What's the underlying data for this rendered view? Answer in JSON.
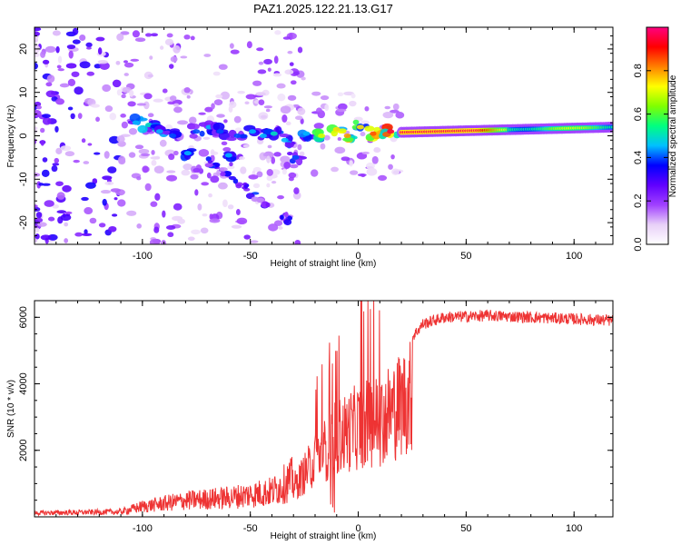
{
  "title": "PAZ1.2025.122.21.13.G17",
  "chart_data": [
    {
      "type": "heatmap",
      "xlabel": "Height of straight line (km)",
      "ylabel": "Frequency (Hz)",
      "xlim": [
        -150,
        118
      ],
      "ylim": [
        -25,
        25
      ],
      "xticks": [
        -100,
        -50,
        0,
        50,
        100
      ],
      "yticks": [
        -20,
        -10,
        0,
        10,
        20
      ],
      "colorbar": {
        "label": "Normalized spectral amplitude",
        "ticks": [
          0.0,
          0.2,
          0.4,
          0.6,
          0.8
        ],
        "range": [
          0,
          1
        ],
        "colors": [
          "#ffffff",
          "#e8d0f8",
          "#a040ff",
          "#6000ff",
          "#0000ff",
          "#00c0ff",
          "#00ff80",
          "#80ff00",
          "#ffff00",
          "#ff8000",
          "#ff0000",
          "#ff0080"
        ]
      },
      "line_energy": [
        {
          "x": -103,
          "y": 3,
          "a": 0.45
        },
        {
          "x": -97,
          "y": 2.5,
          "a": 0.5
        },
        {
          "x": -92,
          "y": 1,
          "a": 0.45
        },
        {
          "x": -86,
          "y": 0,
          "a": 0.4
        },
        {
          "x": -79,
          "y": -4,
          "a": 0.45
        },
        {
          "x": -75,
          "y": 1,
          "a": 0.4
        },
        {
          "x": -69,
          "y": 2,
          "a": 0.45
        },
        {
          "x": -64,
          "y": 1,
          "a": 0.4
        },
        {
          "x": -60,
          "y": -4.5,
          "a": 0.45
        },
        {
          "x": -56,
          "y": 0,
          "a": 0.4
        },
        {
          "x": -49,
          "y": 1,
          "a": 0.45
        },
        {
          "x": -44,
          "y": 0,
          "a": 0.45
        },
        {
          "x": -39,
          "y": 0.5,
          "a": 0.5
        },
        {
          "x": -34,
          "y": -1,
          "a": 0.45
        },
        {
          "x": -29,
          "y": -5,
          "a": 0.4
        },
        {
          "x": -24,
          "y": 0.5,
          "a": 0.45
        },
        {
          "x": -17,
          "y": 0,
          "a": 0.7
        },
        {
          "x": -10,
          "y": 1.5,
          "a": 0.75
        },
        {
          "x": -5,
          "y": 0,
          "a": 0.8
        },
        {
          "x": 1,
          "y": 2,
          "a": 0.75
        },
        {
          "x": 7,
          "y": 0.5,
          "a": 0.85
        },
        {
          "x": 12,
          "y": 1,
          "a": 0.9
        },
        {
          "x": 15,
          "y": 1,
          "a": 0.95
        }
      ],
      "tone": {
        "x_start": 20,
        "x_end": 118,
        "y_start": 0.8,
        "y_end": 2.0,
        "peak_x_start": 20,
        "peak_x_end": 55
      }
    },
    {
      "type": "line",
      "xlabel": "Height of straight line (km)",
      "ylabel": "SNR (10 * v/v)",
      "xlim": [
        -150,
        118
      ],
      "ylim": [
        0,
        6500
      ],
      "xticks": [
        -100,
        -50,
        0,
        50,
        100
      ],
      "yticks": [
        2000,
        4000,
        6000
      ],
      "color": "#ee3333",
      "envelope": [
        {
          "x": -150,
          "y": 130
        },
        {
          "x": -110,
          "y": 170
        },
        {
          "x": -100,
          "y": 350
        },
        {
          "x": -80,
          "y": 550
        },
        {
          "x": -60,
          "y": 650
        },
        {
          "x": -40,
          "y": 850
        },
        {
          "x": -30,
          "y": 1300
        },
        {
          "x": -20,
          "y": 2500
        },
        {
          "x": -10,
          "y": 3500
        },
        {
          "x": 0,
          "y": 4000
        },
        {
          "x": 10,
          "y": 4300
        },
        {
          "x": 20,
          "y": 5000
        },
        {
          "x": 30,
          "y": 5800
        },
        {
          "x": 40,
          "y": 6000
        },
        {
          "x": 60,
          "y": 6050
        },
        {
          "x": 80,
          "y": 6000
        },
        {
          "x": 100,
          "y": 5950
        },
        {
          "x": 118,
          "y": 5900
        }
      ]
    }
  ]
}
